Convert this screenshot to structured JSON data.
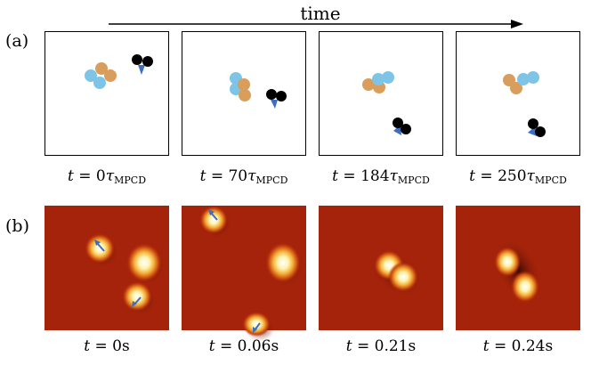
{
  "header": {
    "time_label": "time"
  },
  "rows": [
    {
      "label": "(a)",
      "panels": [
        {
          "t": "0",
          "unit": "τ",
          "unit_sub": "MPCD"
        },
        {
          "t": "70",
          "unit": "τ",
          "unit_sub": "MPCD"
        },
        {
          "t": "184",
          "unit": "τ",
          "unit_sub": "MPCD"
        },
        {
          "t": "250",
          "unit": "τ",
          "unit_sub": "MPCD"
        }
      ]
    },
    {
      "label": "(b)",
      "panels": [
        {
          "t": "0",
          "unit": "s"
        },
        {
          "t": "0.06",
          "unit": "s"
        },
        {
          "t": "0.21",
          "unit": "s"
        },
        {
          "t": "0.24",
          "unit": "s"
        }
      ]
    }
  ],
  "colors": {
    "particle_blue": "#7ec4e6",
    "particle_orange": "#d99d5c",
    "particle_black": "#000000",
    "arrow": "#3b6fc4",
    "micrograph_bg": "#a5230a"
  }
}
